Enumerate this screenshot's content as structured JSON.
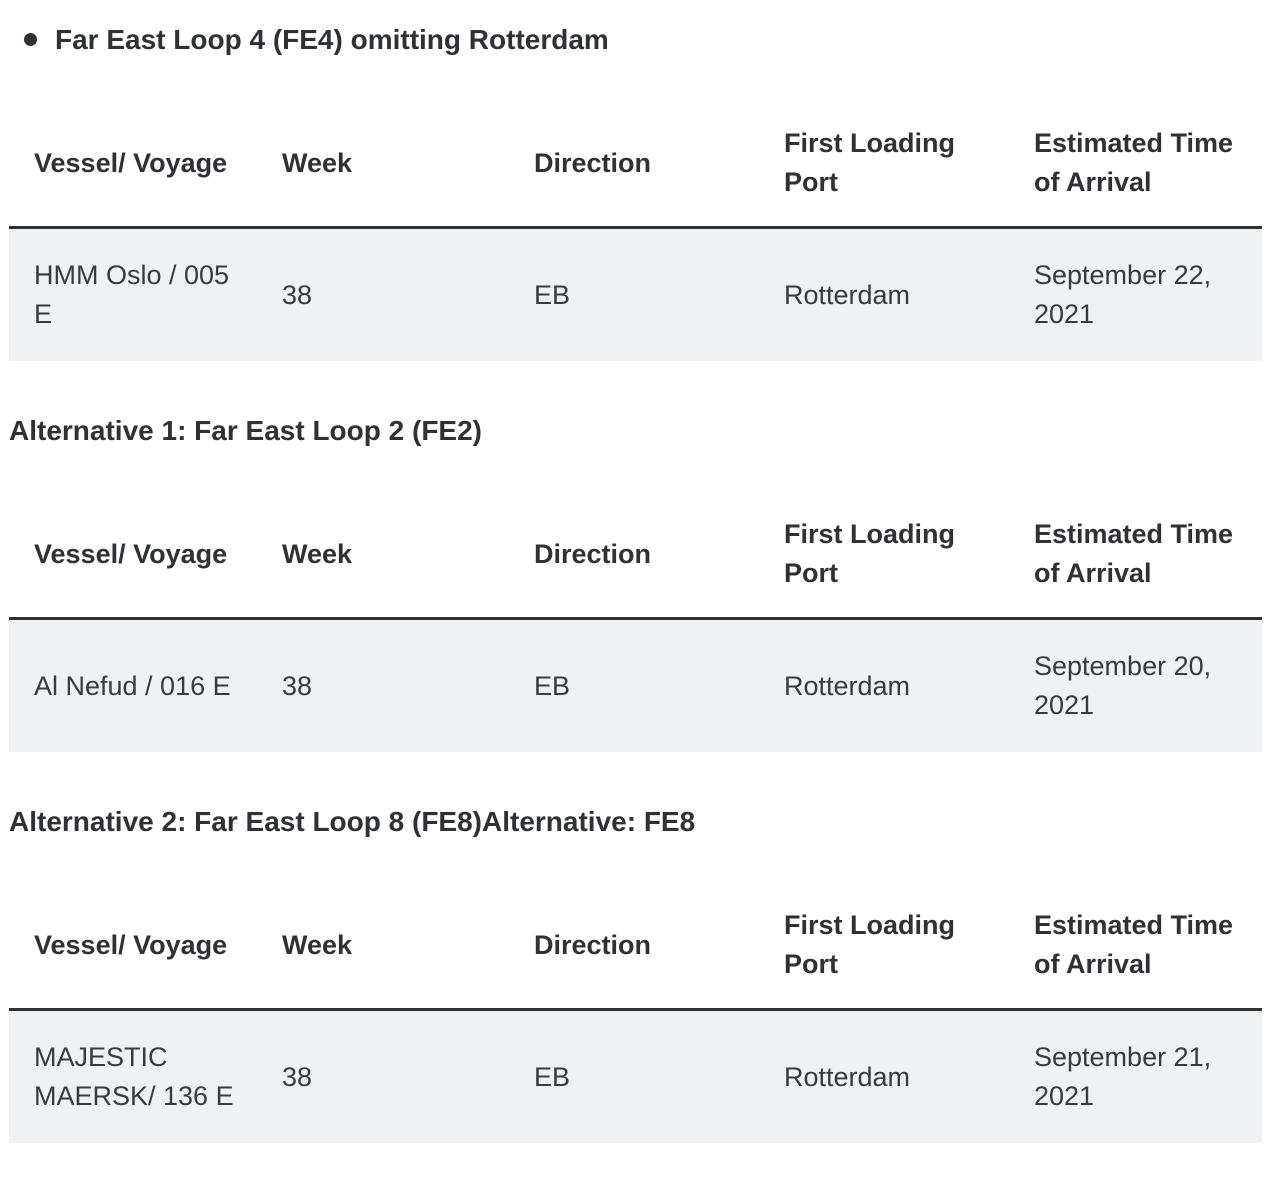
{
  "page": {
    "background": "#ffffff",
    "row_background": "#f0f1f4",
    "rule_color": "#2f3133",
    "heading_color": "#2e3136",
    "cell_text_color": "#373b41"
  },
  "sections": [
    {
      "heading": "Far East Loop 4 (FE4) omitting Rotterdam",
      "bulleted": true,
      "table": {
        "headers": [
          "Vessel/ Voyage",
          "Week",
          "Direction",
          "First Loading Port",
          "Estimated Time of Arrival"
        ],
        "rows": [
          [
            "HMM Oslo / 005 E",
            "38",
            "EB",
            "Rotterdam",
            "September 22, 2021"
          ]
        ]
      }
    },
    {
      "heading": "Alternative 1: Far East Loop 2 (FE2)",
      "bulleted": false,
      "table": {
        "headers": [
          "Vessel/ Voyage",
          "Week",
          "Direction",
          "First Loading Port",
          "Estimated Time of Arrival"
        ],
        "rows": [
          [
            "Al Nefud / 016 E",
            "38",
            "EB",
            "Rotterdam",
            "September 20, 2021"
          ]
        ]
      }
    },
    {
      "heading": "Alternative 2: Far East Loop 8 (FE8)Alternative: FE8",
      "bulleted": false,
      "table": {
        "headers": [
          "Vessel/ Voyage",
          "Week",
          "Direction",
          "First Loading Port",
          "Estimated Time of Arrival"
        ],
        "rows": [
          [
            "MAJESTIC MAERSK/ 136 E",
            "38",
            "EB",
            "Rotterdam",
            "September 21, 2021"
          ]
        ]
      }
    }
  ]
}
